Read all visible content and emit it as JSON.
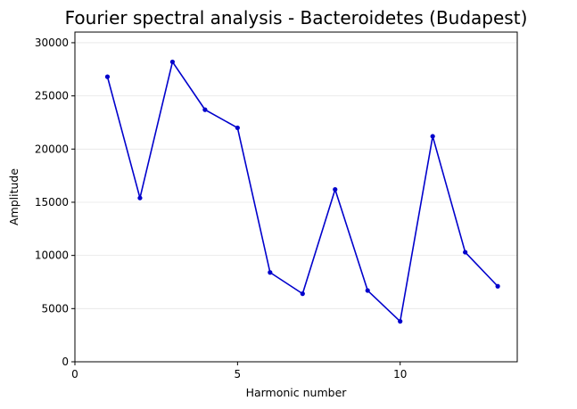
{
  "chart_data": {
    "type": "line",
    "title": "Fourier spectral analysis - Bacteroidetes (Budapest)",
    "xlabel": "Harmonic number",
    "ylabel": "Amplitude",
    "xlim": [
      0,
      13.6
    ],
    "ylim": [
      0,
      31000
    ],
    "xticks": [
      0,
      5,
      10
    ],
    "yticks": [
      0,
      5000,
      10000,
      15000,
      20000,
      25000,
      30000
    ],
    "grid": "horizontal",
    "series": [
      {
        "color": "#0000cc",
        "marker": "circle",
        "x": [
          1,
          2,
          3,
          4,
          5,
          6,
          7,
          8,
          9,
          10,
          11,
          12,
          13
        ],
        "values": [
          26800,
          15400,
          28200,
          23700,
          22000,
          8400,
          6400,
          16200,
          6700,
          3800,
          21200,
          10300,
          7100
        ]
      }
    ]
  }
}
